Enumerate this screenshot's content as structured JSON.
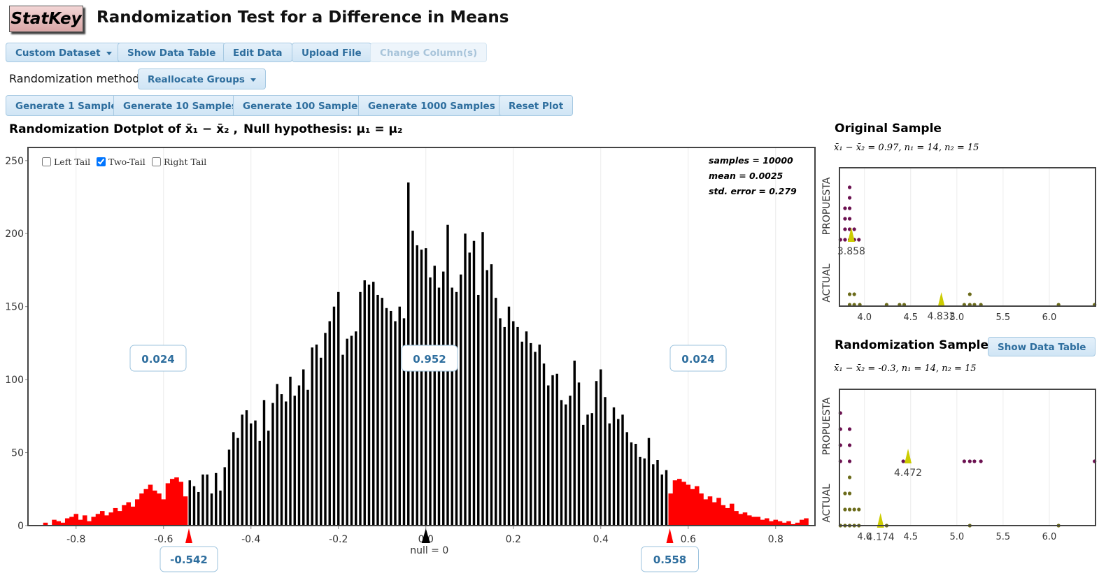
{
  "header": {
    "logo": "StatKey",
    "title": "Randomization Test for a Difference in Means"
  },
  "toolbar": {
    "buttons": [
      "Custom Dataset",
      "Show Data Table",
      "Edit Data",
      "Upload File",
      "Change Column(s)"
    ]
  },
  "method": {
    "label": "Randomization method",
    "value": "Reallocate Groups"
  },
  "generate": {
    "buttons": [
      "Generate 1 Sample",
      "Generate 10 Samples",
      "Generate 100 Samples",
      "Generate 1000 Samples"
    ],
    "reset": "Reset Plot"
  },
  "chart_data": [
    {
      "type": "bar",
      "title": "Randomization Dotplot of x̄₁ − x̄₂ ,",
      "null_hypothesis": "Null hypothesis: μ₁ = μ₂",
      "tails": [
        "Left Tail",
        "Two-Tail",
        "Right Tail"
      ],
      "tail_checked": [
        false,
        true,
        false
      ],
      "stats": [
        "samples = 10000",
        "mean = 0.0025",
        "std. error = 0.279"
      ],
      "null_label": "null = 0",
      "null_value": 0,
      "cutoffs": [
        -0.542,
        0.558
      ],
      "proportions": [
        0.024,
        0.952,
        0.024
      ],
      "series": [
        {
          "color": "#000000",
          "x": [
            -0.54,
            -0.53,
            -0.52,
            -0.51,
            -0.5,
            -0.49,
            -0.48,
            -0.47,
            -0.46,
            -0.45,
            -0.44,
            -0.43,
            -0.42,
            -0.41,
            -0.4,
            -0.39,
            -0.38,
            -0.37,
            -0.36,
            -0.35,
            -0.34,
            -0.33,
            -0.32,
            -0.31,
            -0.3,
            -0.29,
            -0.28,
            -0.27,
            -0.26,
            -0.25,
            -0.24,
            -0.23,
            -0.22,
            -0.21,
            -0.2,
            -0.19,
            -0.18,
            -0.17,
            -0.16,
            -0.15,
            -0.14,
            -0.13,
            -0.12,
            -0.11,
            -0.1,
            -0.09,
            -0.08,
            -0.07,
            -0.06,
            -0.05,
            -0.04,
            -0.03,
            -0.02,
            -0.01,
            0,
            0.01,
            0.02,
            0.03,
            0.04,
            0.05,
            0.06,
            0.07,
            0.08,
            0.09,
            0.1,
            0.11,
            0.12,
            0.13,
            0.14,
            0.15,
            0.16,
            0.17,
            0.18,
            0.19,
            0.2,
            0.21,
            0.22,
            0.23,
            0.24,
            0.25,
            0.26,
            0.27,
            0.28,
            0.29,
            0.3,
            0.31,
            0.32,
            0.33,
            0.34,
            0.35,
            0.36,
            0.37,
            0.38,
            0.39,
            0.4,
            0.41,
            0.42,
            0.43,
            0.44,
            0.45,
            0.46,
            0.47,
            0.48,
            0.49,
            0.5,
            0.51,
            0.52,
            0.53,
            0.54,
            0.55
          ],
          "values": [
            31,
            27,
            23,
            35,
            35,
            22,
            36,
            24,
            40,
            52,
            64,
            60,
            76,
            79,
            70,
            72,
            58,
            86,
            65,
            84,
            97,
            90,
            85,
            102,
            89,
            96,
            107,
            93,
            122,
            124,
            115,
            132,
            140,
            150,
            160,
            117,
            128,
            130,
            133,
            160,
            168,
            165,
            167,
            158,
            156,
            149,
            147,
            140,
            150,
            142,
            235,
            202,
            192,
            189,
            190,
            170,
            178,
            163,
            174,
            206,
            163,
            160,
            172,
            200,
            187,
            195,
            158,
            201,
            175,
            179,
            156,
            142,
            136,
            150,
            140,
            136,
            126,
            133,
            125,
            119,
            124,
            111,
            96,
            103,
            104,
            86,
            83,
            89,
            113,
            98,
            69,
            76,
            77,
            99,
            107,
            88,
            70,
            81,
            73,
            76,
            64,
            57,
            56,
            47,
            46,
            60,
            42,
            45,
            35,
            38
          ]
        },
        {
          "color": "#ff0000",
          "x": [
            -0.87,
            -0.86,
            -0.85,
            -0.84,
            -0.83,
            -0.82,
            -0.81,
            -0.8,
            -0.79,
            -0.78,
            -0.77,
            -0.76,
            -0.75,
            -0.74,
            -0.73,
            -0.72,
            -0.71,
            -0.7,
            -0.69,
            -0.68,
            -0.67,
            -0.66,
            -0.65,
            -0.64,
            -0.63,
            -0.62,
            -0.61,
            -0.6,
            -0.59,
            -0.58,
            -0.57,
            -0.56,
            -0.55
          ],
          "values": [
            2,
            0,
            4,
            3,
            2,
            5,
            6,
            8,
            4,
            7,
            3,
            6,
            8,
            10,
            7,
            9,
            12,
            10,
            14,
            16,
            13,
            18,
            22,
            25,
            28,
            24,
            22,
            18,
            29,
            32,
            33,
            30,
            20
          ]
        },
        {
          "color": "#ff0000",
          "x": [
            0.56,
            0.57,
            0.58,
            0.59,
            0.6,
            0.61,
            0.62,
            0.63,
            0.64,
            0.65,
            0.66,
            0.67,
            0.68,
            0.69,
            0.7,
            0.71,
            0.72,
            0.73,
            0.74,
            0.75,
            0.76,
            0.77,
            0.78,
            0.79,
            0.8,
            0.81,
            0.82,
            0.83,
            0.84,
            0.85,
            0.86,
            0.87
          ],
          "values": [
            22,
            31,
            32,
            30,
            28,
            25,
            27,
            22,
            18,
            20,
            16,
            19,
            14,
            12,
            15,
            10,
            8,
            9,
            7,
            6,
            6,
            4,
            5,
            3,
            4,
            3,
            2,
            3,
            1,
            2,
            4,
            5
          ]
        }
      ],
      "xlim": [
        -0.91,
        0.89
      ],
      "xticks": [
        -0.8,
        -0.6,
        -0.4,
        -0.2,
        {
          "value": 0,
          "label": "0.0"
        },
        0.2,
        0.4,
        0.6,
        0.8
      ],
      "ylim": [
        0,
        259
      ],
      "yticks": [
        0,
        50,
        100,
        150,
        200,
        250
      ],
      "grid": true
    },
    {
      "type": "dotplot",
      "title": "Original Sample",
      "subtitle": "x̄₁ − x̄₂ = 0.97, n₁ = 14, n₂ = 15",
      "groups": [
        {
          "name": "PROPUESTA",
          "color": "#6b1150",
          "values": [
            3.74,
            3.79,
            3.79,
            3.79,
            3.79,
            3.84,
            3.84,
            3.84,
            3.84,
            3.84,
            3.84,
            3.89,
            3.89,
            3.94
          ],
          "mean": 3.858
        },
        {
          "name": "ACTUAL",
          "color": "#6b6b1a",
          "values": [
            3.84,
            3.84,
            3.89,
            3.89,
            3.95,
            4.24,
            4.38,
            4.43,
            5.08,
            5.14,
            5.14,
            5.19,
            5.26,
            6.1,
            6.49
          ],
          "mean": 4.832
        }
      ],
      "xlim": [
        3.73,
        6.5
      ],
      "xticks": [
        {
          "value": 4,
          "label": "4.0"
        },
        4.5,
        {
          "value": 5,
          "label": "5.0"
        },
        5.5,
        {
          "value": 6,
          "label": "6.0"
        }
      ],
      "grid": true
    },
    {
      "type": "dotplot",
      "title": "Randomization Sample",
      "button": "Show Data Table",
      "subtitle": "x̄₁ − x̄₂ = -0.3, n₁ = 14, n₂ = 15",
      "groups": [
        {
          "name": "PROPUESTA",
          "color": "#6b1150",
          "values": [
            3.74,
            3.74,
            3.74,
            3.74,
            3.84,
            3.84,
            3.84,
            4.42,
            4.47,
            5.08,
            5.14,
            5.19,
            5.26,
            6.49
          ],
          "mean": 4.472
        },
        {
          "name": "ACTUAL",
          "color": "#6b6b1a",
          "values": [
            3.74,
            3.79,
            3.79,
            3.79,
            3.84,
            3.84,
            3.84,
            3.84,
            3.89,
            3.89,
            3.94,
            3.94,
            4.24,
            5.14,
            6.1
          ],
          "mean": 4.174
        }
      ],
      "xlim": [
        3.73,
        6.5
      ],
      "xticks": [
        {
          "value": 4,
          "label": "4.0"
        },
        4.5,
        {
          "value": 5,
          "label": "5.0"
        },
        5.5,
        {
          "value": 6,
          "label": "6.0"
        }
      ],
      "grid": true
    }
  ]
}
